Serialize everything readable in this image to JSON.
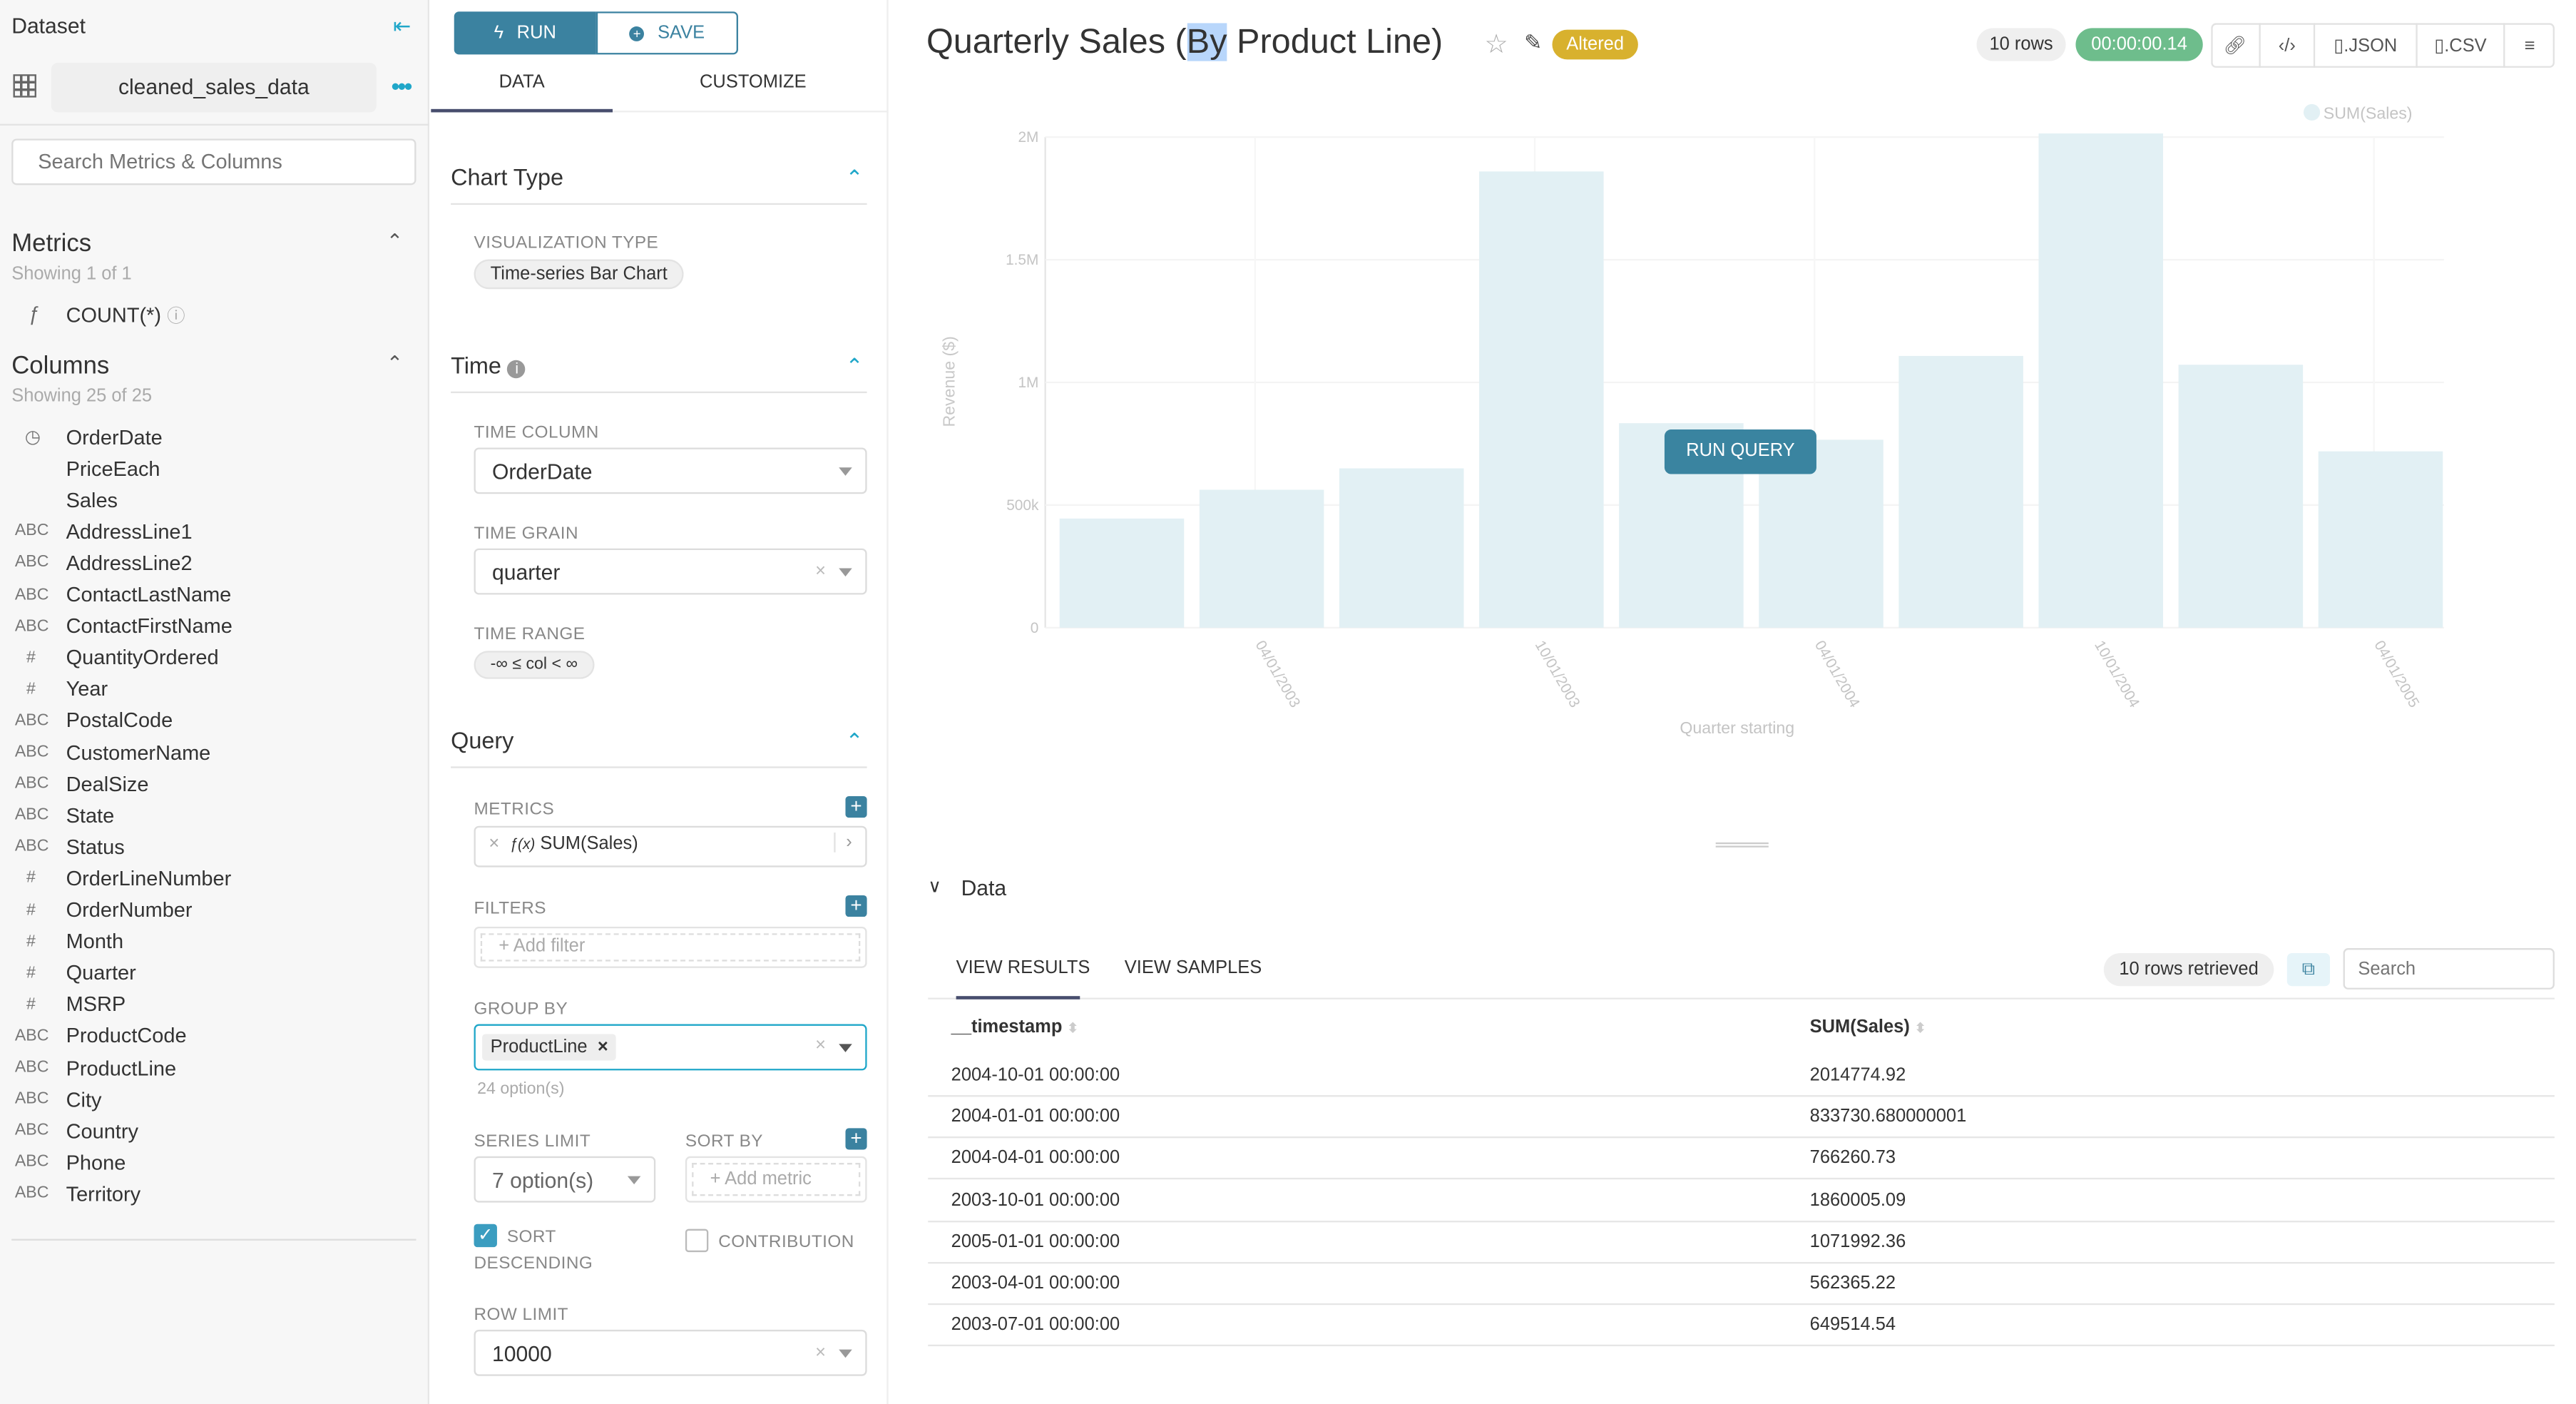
{
  "sidebar": {
    "dataset_label": "Dataset",
    "dataset_name": "cleaned_sales_data",
    "search_placeholder": "Search Metrics & Columns",
    "metrics_title": "Metrics",
    "metrics_count": "Showing 1 of 1",
    "metrics": [
      {
        "type": "ƒ",
        "name": "COUNT(*)"
      }
    ],
    "columns_title": "Columns",
    "columns_count": "Showing 25 of 25",
    "columns": [
      {
        "type": "clock",
        "name": "OrderDate"
      },
      {
        "type": "",
        "name": "PriceEach"
      },
      {
        "type": "",
        "name": "Sales"
      },
      {
        "type": "ABC",
        "name": "AddressLine1"
      },
      {
        "type": "ABC",
        "name": "AddressLine2"
      },
      {
        "type": "ABC",
        "name": "ContactLastName"
      },
      {
        "type": "ABC",
        "name": "ContactFirstName"
      },
      {
        "type": "#",
        "name": "QuantityOrdered"
      },
      {
        "type": "#",
        "name": "Year"
      },
      {
        "type": "ABC",
        "name": "PostalCode"
      },
      {
        "type": "ABC",
        "name": "CustomerName"
      },
      {
        "type": "ABC",
        "name": "DealSize"
      },
      {
        "type": "ABC",
        "name": "State"
      },
      {
        "type": "ABC",
        "name": "Status"
      },
      {
        "type": "#",
        "name": "OrderLineNumber"
      },
      {
        "type": "#",
        "name": "OrderNumber"
      },
      {
        "type": "#",
        "name": "Month"
      },
      {
        "type": "#",
        "name": "Quarter"
      },
      {
        "type": "#",
        "name": "MSRP"
      },
      {
        "type": "ABC",
        "name": "ProductCode"
      },
      {
        "type": "ABC",
        "name": "ProductLine"
      },
      {
        "type": "ABC",
        "name": "City"
      },
      {
        "type": "ABC",
        "name": "Country"
      },
      {
        "type": "ABC",
        "name": "Phone"
      },
      {
        "type": "ABC",
        "name": "Territory"
      }
    ]
  },
  "controls": {
    "run_label": "RUN",
    "save_label": "SAVE",
    "tabs": [
      "DATA",
      "CUSTOMIZE"
    ],
    "chart_type_title": "Chart Type",
    "viz_type_label": "VISUALIZATION TYPE",
    "viz_type_value": "Time-series Bar Chart",
    "time_title": "Time",
    "time_column_label": "TIME COLUMN",
    "time_column_value": "OrderDate",
    "time_grain_label": "TIME GRAIN",
    "time_grain_value": "quarter",
    "time_range_label": "TIME RANGE",
    "time_range_value": "-∞ ≤ col < ∞",
    "query_title": "Query",
    "metrics_label": "METRICS",
    "metric_value": "SUM(Sales)",
    "filters_label": "FILTERS",
    "filters_placeholder": "Add filter",
    "group_by_label": "GROUP BY",
    "group_by_value": "ProductLine",
    "group_by_options": "24 option(s)",
    "series_limit_label": "SERIES LIMIT",
    "series_limit_value": "7 option(s)",
    "sort_by_label": "SORT BY",
    "sort_by_placeholder": "Add metric",
    "sort_desc_label_1": "SORT",
    "sort_desc_label_2": "DESCENDING",
    "sort_desc_checked": true,
    "contribution_label": "CONTRIBUTION",
    "contribution_checked": false,
    "row_limit_label": "ROW LIMIT",
    "row_limit_value": "10000"
  },
  "header": {
    "title_pre": "Quarterly Sales (",
    "title_sel": "By",
    "title_post": " Product Line)",
    "altered_badge": "Altered",
    "rows_badge": "10 rows",
    "timer_badge": "00:00:00.14",
    "json_label": ".JSON",
    "csv_label": ".CSV"
  },
  "colors": {
    "accent": "#20a7c9",
    "primary": "#3b82a0",
    "bar": "#e2f0f4",
    "altered": "#d8b12e",
    "timer": "#6ebd8c"
  },
  "chart_data": {
    "type": "bar",
    "categories": [
      "2003-01-01",
      "2003-04-01",
      "2003-07-01",
      "2003-10-01",
      "2004-01-01",
      "2004-04-01",
      "2004-07-01",
      "2004-10-01",
      "2005-01-01",
      "2005-04-01"
    ],
    "series": [
      {
        "name": "SUM(Sales)",
        "values": [
          445000,
          562365.22,
          649514.54,
          1860005.09,
          833730.68,
          766260.73,
          1108000,
          2014774.92,
          1071992.36,
          719000
        ]
      }
    ],
    "xtick_labels": [
      "04/01/2003",
      "10/01/2003",
      "04/01/2004",
      "10/01/2004",
      "04/01/2005"
    ],
    "xtick_indices": [
      1,
      3,
      5,
      7,
      9
    ],
    "ytick_values": [
      0,
      500000,
      1000000,
      1500000,
      2000000
    ],
    "ytick_labels": [
      "0",
      "500k",
      "1M",
      "1.5M",
      "2M"
    ],
    "ylim": [
      0,
      2000000
    ],
    "xlabel": "Quarter starting",
    "ylabel": "Revenue ($)",
    "legend": "top-right",
    "grid": true,
    "overlay_button": "RUN QUERY"
  },
  "results": {
    "section_title": "Data",
    "tabs": [
      "VIEW RESULTS",
      "VIEW SAMPLES"
    ],
    "rows_retrieved": "10 rows retrieved",
    "search_placeholder": "Search",
    "columns": [
      "__timestamp",
      "SUM(Sales)"
    ],
    "rows": [
      [
        "2004-10-01 00:00:00",
        "2014774.92"
      ],
      [
        "2004-01-01 00:00:00",
        "833730.680000001"
      ],
      [
        "2004-04-01 00:00:00",
        "766260.73"
      ],
      [
        "2003-10-01 00:00:00",
        "1860005.09"
      ],
      [
        "2005-01-01 00:00:00",
        "1071992.36"
      ],
      [
        "2003-04-01 00:00:00",
        "562365.22"
      ],
      [
        "2003-07-01 00:00:00",
        "649514.54"
      ]
    ]
  }
}
